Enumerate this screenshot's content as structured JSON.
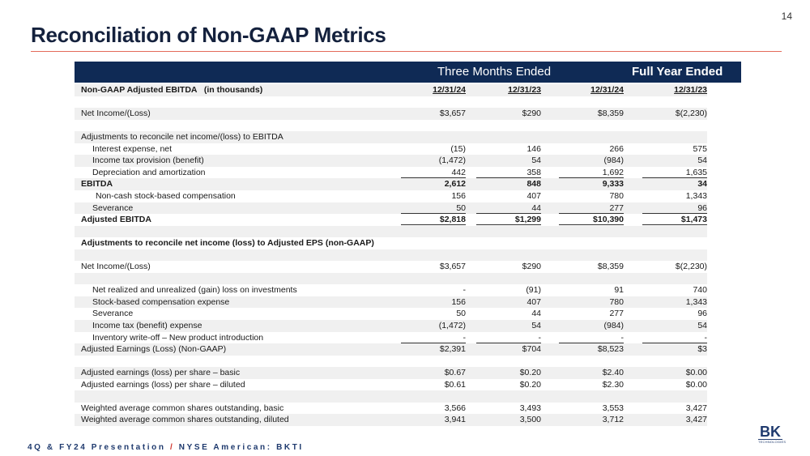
{
  "page_number": "14",
  "title": "Reconciliation of Non-GAAP Metrics",
  "table": {
    "column_groups": [
      "Three Months Ended",
      "Full Year Ended"
    ],
    "header": {
      "label": "Non-GAAP Adjusted EBITDA   (in thousands)",
      "dates": [
        "12/31/24",
        "12/31/23",
        "12/31/24",
        "12/31/23"
      ]
    },
    "rows": [
      {
        "label": "Net Income/(Loss)",
        "values": [
          "$3,657",
          "$290",
          "$8,359",
          "$(2,230)"
        ]
      },
      {
        "label": "Adjustments to reconcile net income/(loss) to EBITDA"
      },
      {
        "label": "Interest expense, net",
        "values": [
          "(15)",
          "146",
          "266",
          "575"
        ]
      },
      {
        "label": "Income tax provision (benefit)",
        "values": [
          "(1,472)",
          "54",
          "(984)",
          "54"
        ]
      },
      {
        "label": "Depreciation and amortization",
        "values": [
          "442",
          "358",
          "1,692",
          "1,635"
        ]
      },
      {
        "label": "EBITDA",
        "values": [
          "2,612",
          "848",
          "9,333",
          "34"
        ]
      },
      {
        "label": "Non-cash stock-based compensation",
        "values": [
          "156",
          "407",
          "780",
          "1,343"
        ]
      },
      {
        "label": "Severance",
        "values": [
          "50",
          "44",
          "277",
          "96"
        ]
      },
      {
        "label": "Adjusted EBITDA",
        "values": [
          "$2,818",
          "$1,299",
          "$10,390",
          "$1,473"
        ]
      },
      {
        "label": "Adjustments to reconcile net income (loss) to Adjusted EPS (non-GAAP)"
      },
      {
        "label": "Net Income/(Loss)",
        "values": [
          "$3,657",
          "$290",
          "$8,359",
          "$(2,230)"
        ]
      },
      {
        "label": "Net realized and unrealized (gain) loss on investments",
        "values": [
          "-",
          "(91)",
          "91",
          "740"
        ]
      },
      {
        "label": "Stock-based compensation expense",
        "values": [
          "156",
          "407",
          "780",
          "1,343"
        ]
      },
      {
        "label": "Severance",
        "values": [
          "50",
          "44",
          "277",
          "96"
        ]
      },
      {
        "label": "Income tax (benefit) expense",
        "values": [
          "(1,472)",
          "54",
          "(984)",
          "54"
        ]
      },
      {
        "label": "Inventory write-off – New product introduction",
        "values": [
          "-",
          "-",
          "-",
          "-"
        ]
      },
      {
        "label": "Adjusted Earnings (Loss) (Non-GAAP)",
        "values": [
          "$2,391",
          "$704",
          "$8,523",
          "$3"
        ]
      },
      {
        "label": "Adjusted earnings (loss) per share – basic",
        "values": [
          "$0.67",
          "$0.20",
          "$2.40",
          "$0.00"
        ]
      },
      {
        "label": "Adjusted earnings (loss) per share – diluted",
        "values": [
          "$0.61",
          "$0.20",
          "$2.30",
          "$0.00"
        ]
      },
      {
        "label": "Weighted average common shares outstanding, basic",
        "values": [
          "3,566",
          "3,493",
          "3,553",
          "3,427"
        ]
      },
      {
        "label": "Weighted average common shares outstanding, diluted",
        "values": [
          "3,941",
          "3,500",
          "3,712",
          "3,427"
        ]
      }
    ]
  },
  "footer": {
    "left": "4Q & FY24 Presentation",
    "separator": "/",
    "right": "NYSE American: BKTI"
  },
  "logo": {
    "mark": "BK",
    "text": "TECHNOLOGIES"
  }
}
